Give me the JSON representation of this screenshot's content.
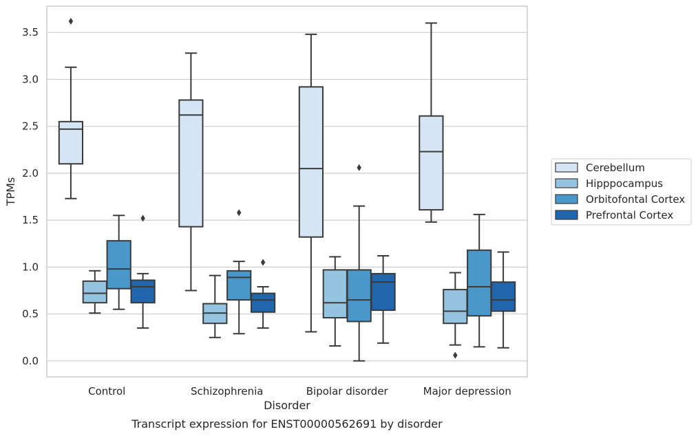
{
  "caption": "Transcript expression for ENST00000562691 by disorder",
  "chart_data": {
    "type": "box",
    "xlabel": "Disorder",
    "ylabel": "TPMs",
    "ylim": [
      -0.17,
      3.78
    ],
    "yticks": [
      "0.0",
      "0.5",
      "1.0",
      "1.5",
      "2.0",
      "2.5",
      "3.0",
      "3.5"
    ],
    "grid": "horizontal",
    "legend_position": "right",
    "categories": [
      "Control",
      "Schizophrenia",
      "Bipolar disorder",
      "Major depression"
    ],
    "series": [
      {
        "name": "Cerebellum",
        "color": "#d6e5f4",
        "boxes": [
          {
            "min": 1.73,
            "q1": 2.1,
            "median": 2.47,
            "q3": 2.55,
            "max": 3.13,
            "outliers": [
              3.62
            ]
          },
          {
            "min": 0.75,
            "q1": 1.43,
            "median": 2.62,
            "q3": 2.78,
            "max": 3.28,
            "outliers": []
          },
          {
            "min": 0.31,
            "q1": 1.32,
            "median": 2.05,
            "q3": 2.92,
            "max": 3.48,
            "outliers": []
          },
          {
            "min": 1.48,
            "q1": 1.61,
            "median": 2.23,
            "q3": 2.61,
            "max": 3.6,
            "outliers": []
          }
        ]
      },
      {
        "name": "Hipppocampus",
        "color": "#94c4df",
        "boxes": [
          {
            "min": 0.51,
            "q1": 0.62,
            "median": 0.72,
            "q3": 0.85,
            "max": 0.96,
            "outliers": []
          },
          {
            "min": 0.25,
            "q1": 0.4,
            "median": 0.51,
            "q3": 0.61,
            "max": 0.91,
            "outliers": []
          },
          {
            "min": 0.16,
            "q1": 0.46,
            "median": 0.62,
            "q3": 0.97,
            "max": 1.11,
            "outliers": []
          },
          {
            "min": 0.17,
            "q1": 0.4,
            "median": 0.53,
            "q3": 0.76,
            "max": 0.94,
            "outliers": [
              0.06
            ]
          }
        ]
      },
      {
        "name": "Orbitofontal Cortex",
        "color": "#4a98c9",
        "boxes": [
          {
            "min": 0.55,
            "q1": 0.77,
            "median": 0.98,
            "q3": 1.28,
            "max": 1.55,
            "outliers": []
          },
          {
            "min": 0.29,
            "q1": 0.65,
            "median": 0.89,
            "q3": 0.96,
            "max": 1.06,
            "outliers": [
              1.58
            ]
          },
          {
            "min": 0.0,
            "q1": 0.42,
            "median": 0.65,
            "q3": 0.97,
            "max": 1.65,
            "outliers": [
              2.06
            ]
          },
          {
            "min": 0.15,
            "q1": 0.48,
            "median": 0.79,
            "q3": 1.18,
            "max": 1.56,
            "outliers": []
          }
        ]
      },
      {
        "name": "Prefrontal Cortex",
        "color": "#2166ac",
        "boxes": [
          {
            "min": 0.35,
            "q1": 0.62,
            "median": 0.79,
            "q3": 0.86,
            "max": 0.93,
            "outliers": [
              1.52
            ]
          },
          {
            "min": 0.35,
            "q1": 0.52,
            "median": 0.65,
            "q3": 0.72,
            "max": 0.79,
            "outliers": [
              1.05
            ]
          },
          {
            "min": 0.19,
            "q1": 0.54,
            "median": 0.84,
            "q3": 0.93,
            "max": 1.12,
            "outliers": []
          },
          {
            "min": 0.14,
            "q1": 0.53,
            "median": 0.65,
            "q3": 0.84,
            "max": 1.16,
            "outliers": []
          }
        ]
      }
    ]
  }
}
